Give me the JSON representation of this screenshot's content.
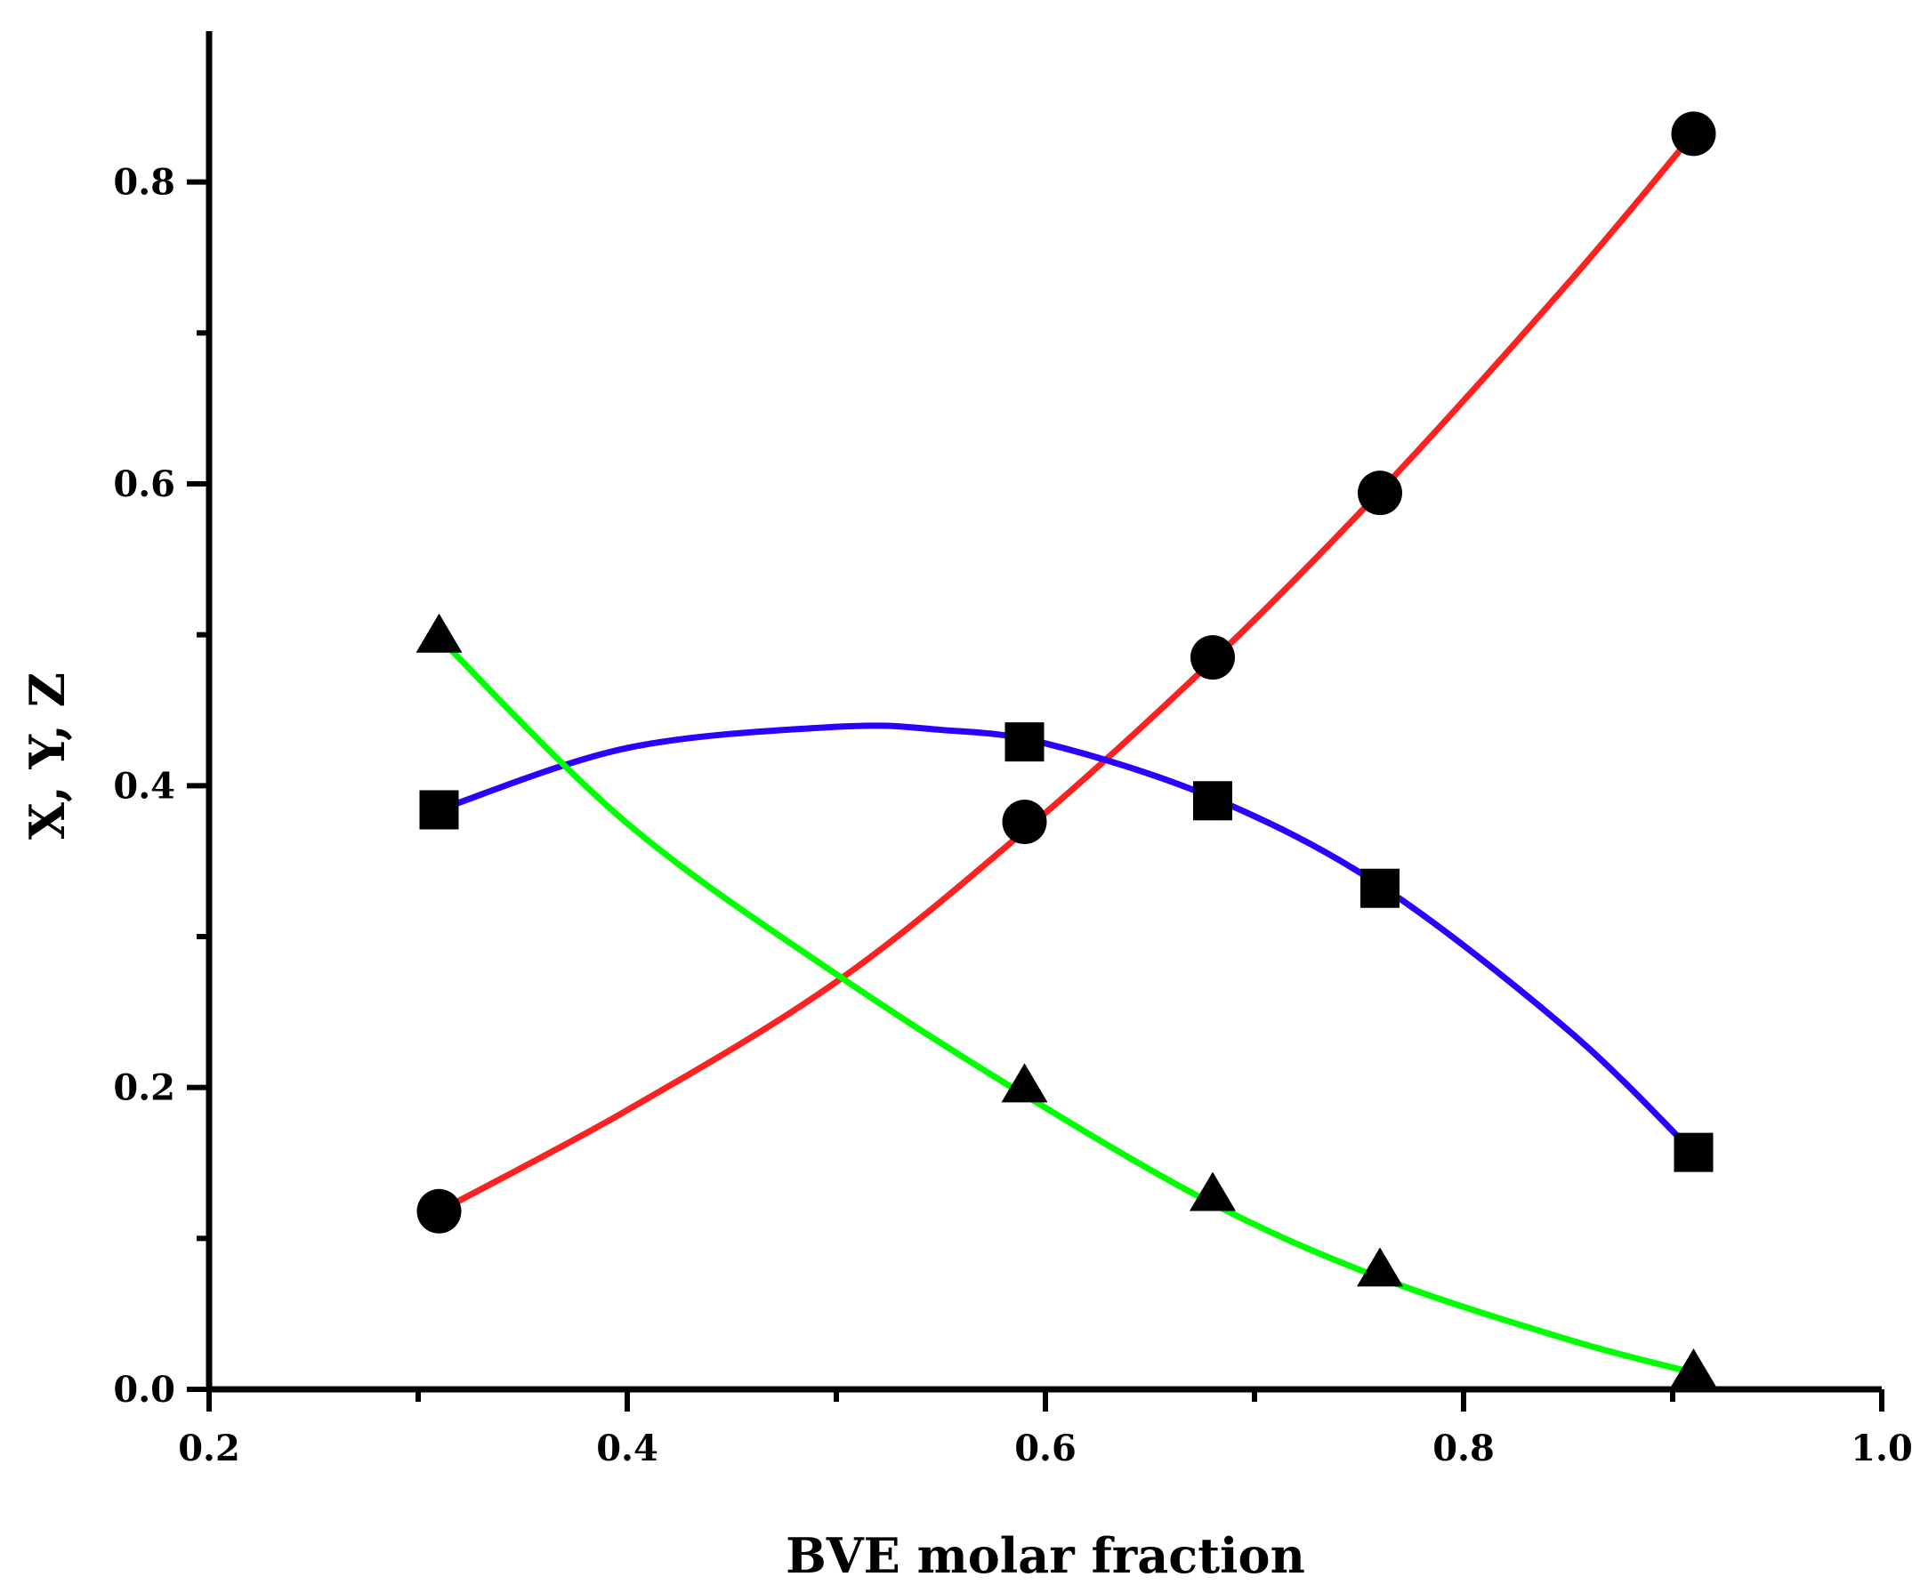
{
  "chart_data": {
    "type": "scatter",
    "title": "",
    "xlabel": "BVE molar fraction",
    "ylabel": "X, Y, Z",
    "xlim": [
      0.2,
      1.0
    ],
    "ylim": [
      0.0,
      0.9
    ],
    "x_major_ticks": [
      0.2,
      0.4,
      0.6,
      0.8,
      1.0
    ],
    "x_tick_labels": [
      "0.2",
      "0.4",
      "0.6",
      "0.8",
      "1.0"
    ],
    "x_minor_ticks": [
      0.3,
      0.5,
      0.7,
      0.9
    ],
    "y_major_ticks": [
      0.0,
      0.2,
      0.4,
      0.6,
      0.8
    ],
    "y_tick_labels": [
      "0.0",
      "0.2",
      "0.4",
      "0.6",
      "0.8"
    ],
    "y_minor_ticks": [
      0.1,
      0.3,
      0.5,
      0.7
    ],
    "legend": "none",
    "grid": false,
    "series": [
      {
        "name": "circles",
        "marker": "circle",
        "line_color": "#ff2020",
        "x": [
          0.31,
          0.59,
          0.68,
          0.76,
          0.91
        ],
        "values": [
          0.118,
          0.376,
          0.485,
          0.594,
          0.832
        ],
        "fit_x": [
          0.31,
          0.4,
          0.5,
          0.59,
          0.68,
          0.76,
          0.85,
          0.91
        ],
        "fit_y": [
          0.118,
          0.185,
          0.27,
          0.37,
          0.483,
          0.595,
          0.733,
          0.832
        ]
      },
      {
        "name": "squares",
        "marker": "square",
        "line_color": "#2b00ff",
        "x": [
          0.31,
          0.59,
          0.68,
          0.76,
          0.91
        ],
        "values": [
          0.384,
          0.429,
          0.39,
          0.332,
          0.157
        ],
        "fit_x": [
          0.31,
          0.4,
          0.5,
          0.55,
          0.6,
          0.68,
          0.76,
          0.85,
          0.91
        ],
        "fit_y": [
          0.384,
          0.425,
          0.439,
          0.437,
          0.428,
          0.392,
          0.334,
          0.238,
          0.157
        ]
      },
      {
        "name": "triangles",
        "marker": "triangle",
        "line_color": "#00ff00",
        "x": [
          0.31,
          0.59,
          0.68,
          0.76,
          0.91
        ],
        "values": [
          0.498,
          0.2,
          0.128,
          0.078,
          0.011
        ],
        "fit_x": [
          0.31,
          0.4,
          0.5,
          0.59,
          0.68,
          0.76,
          0.85,
          0.91
        ],
        "fit_y": [
          0.498,
          0.375,
          0.275,
          0.195,
          0.123,
          0.074,
          0.033,
          0.011
        ]
      }
    ]
  }
}
